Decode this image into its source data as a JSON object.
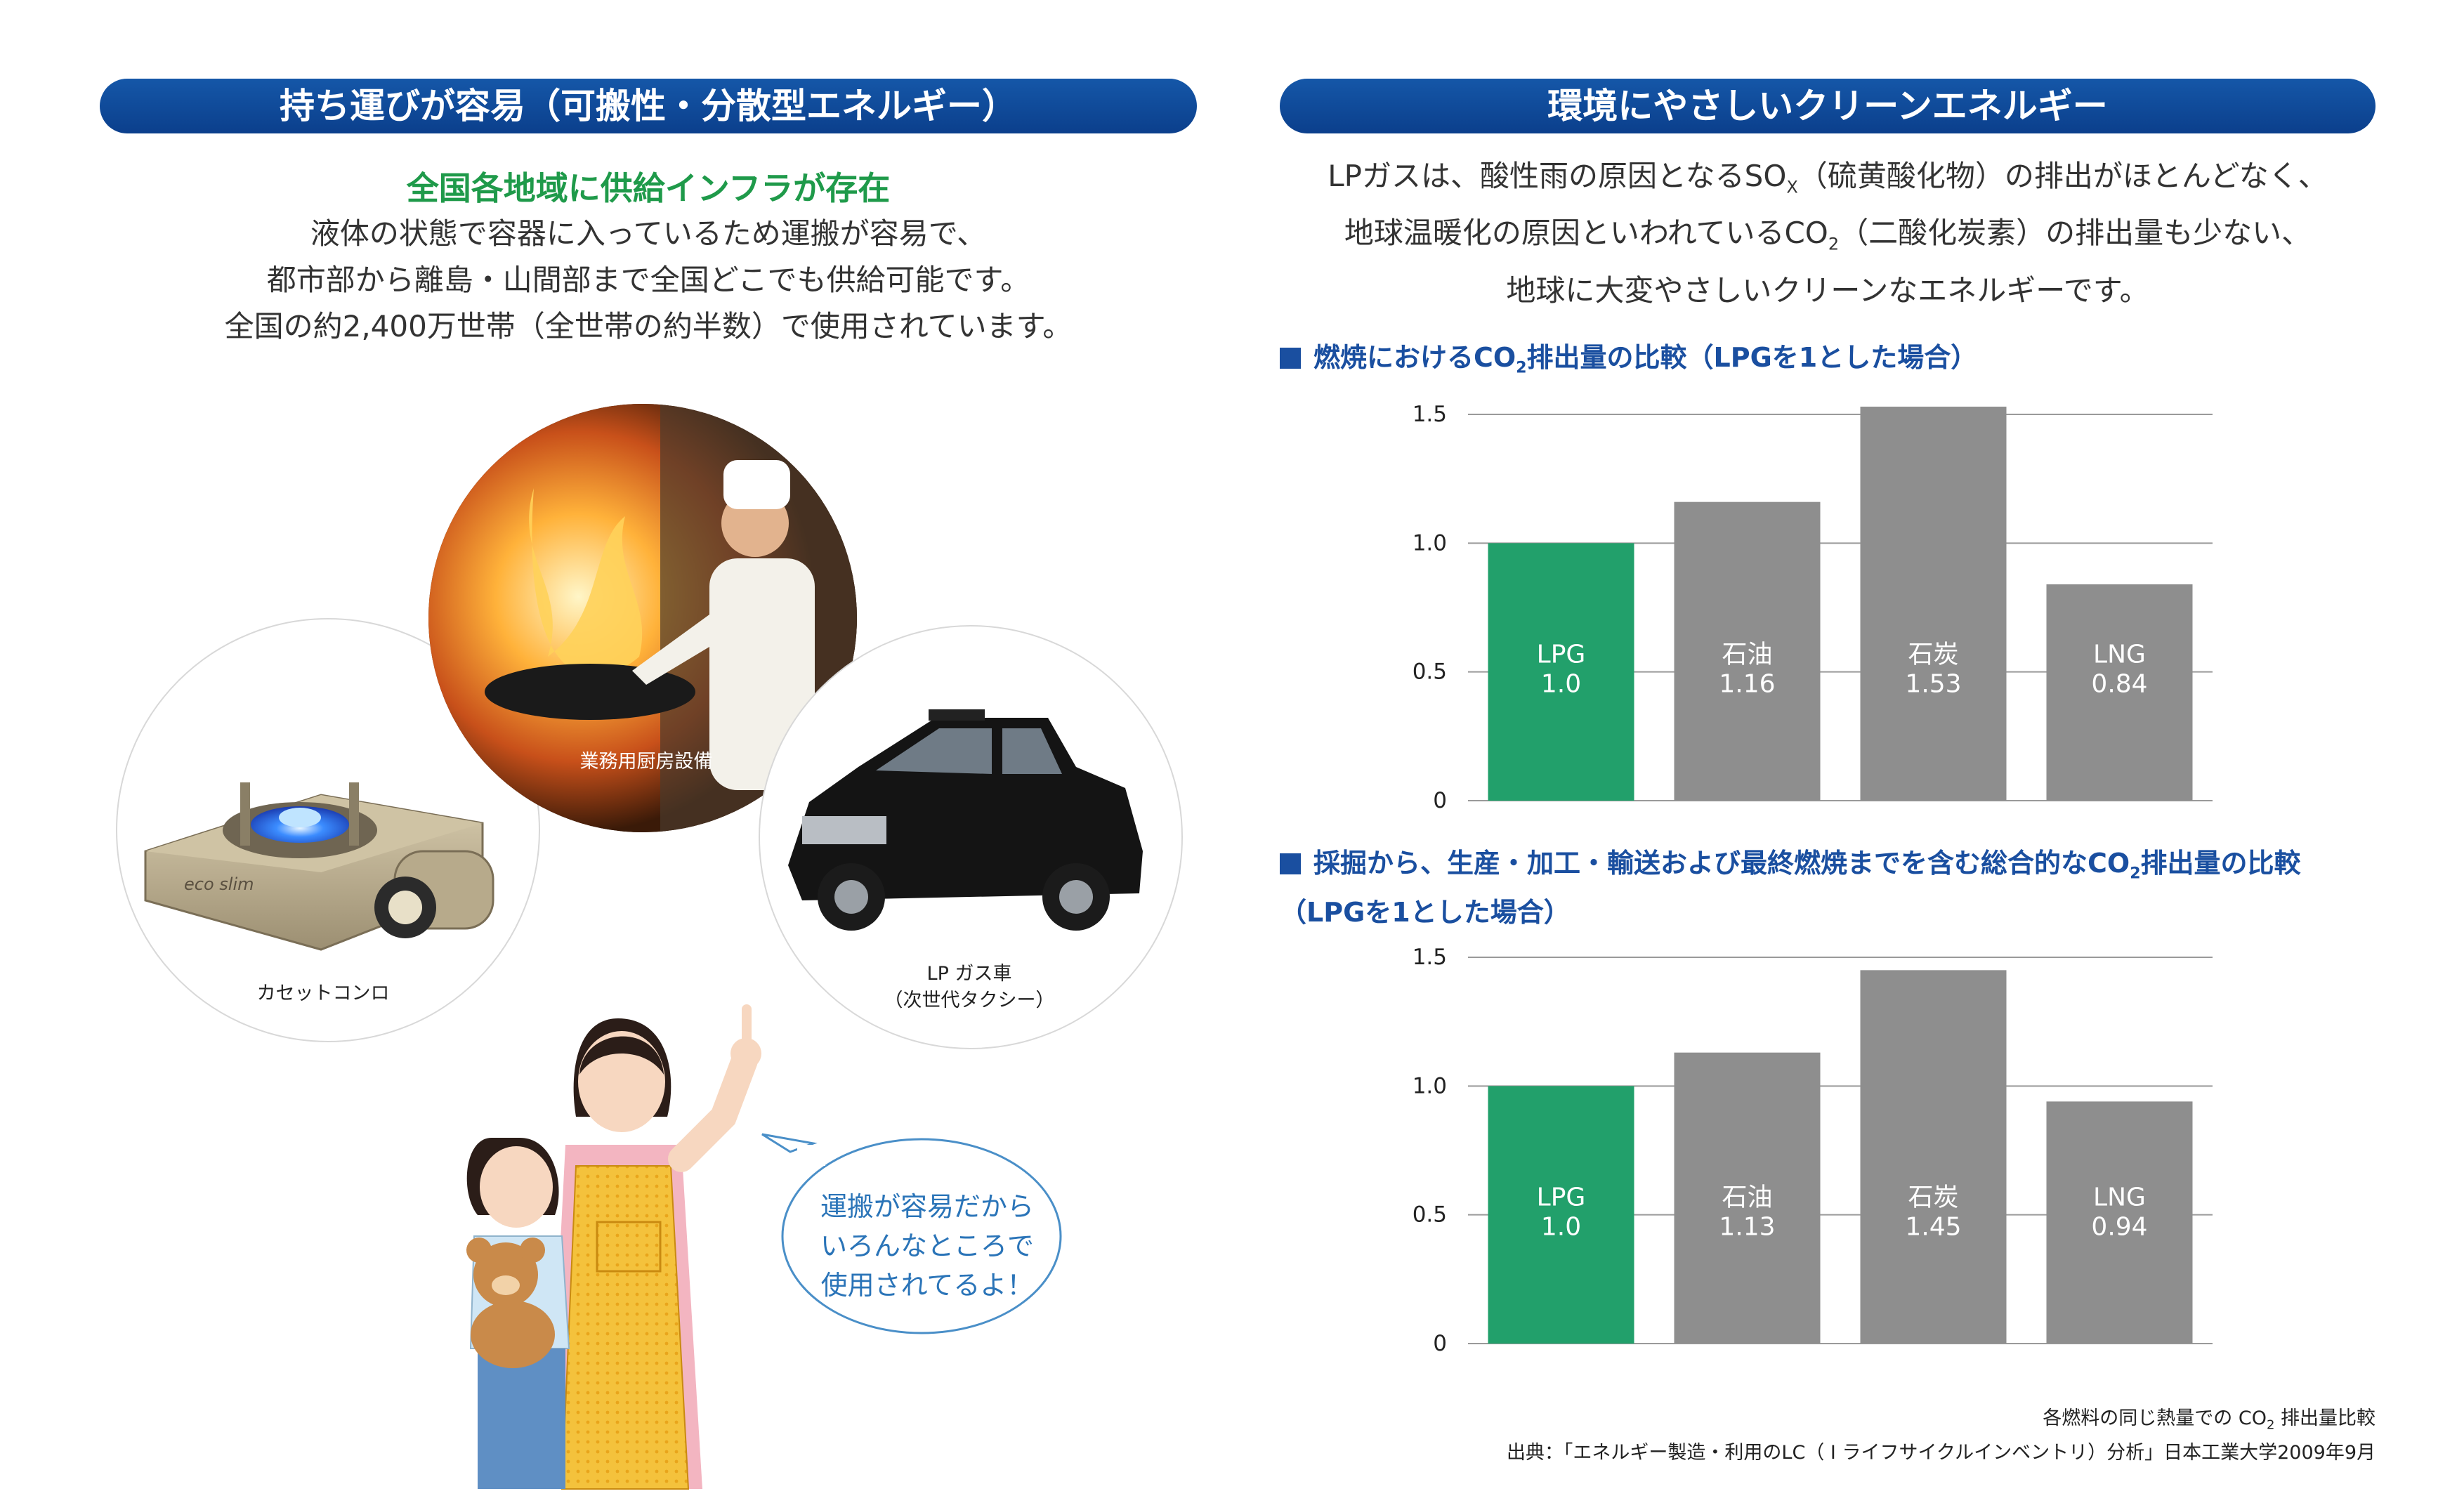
{
  "left": {
    "header": "持ち運びが容易（可搬性・分散型エネルギー）",
    "subhead": "全国各地域に供給インフラが存在",
    "lines": [
      "液体の状態で容器に入っているため運搬が容易で、",
      "都市部から離島・山間部まで全国どこでも供給可能です。",
      "全国の約2,400万世帯（全世帯の約半数）で使用されています。"
    ],
    "captions": {
      "kitchen": "業務用厨房設備",
      "stove": "カセットコンロ",
      "car_line1": "LP ガス車",
      "car_line2": "（次世代タクシー）"
    },
    "stove_brand": "eco slim",
    "bubble": [
      "運搬が容易だから",
      "いろんなところで",
      "使用されてるよ！"
    ]
  },
  "right": {
    "header": "環境にやさしいクリーンエネルギー",
    "intro": {
      "l1_pre": "LPガスは、酸性雨の原因となるSO",
      "l1_sub": "X",
      "l1_post": "（硫黄酸化物）の排出がほとんどなく、",
      "l2_pre": "地球温暖化の原因といわれているCO",
      "l2_sub": "2",
      "l2_post": "（二酸化炭素）の排出量も少ない、",
      "l3": "地球に大変やさしいクリーンなエネルギーです。"
    },
    "chart1_title": {
      "pre": "燃焼におけるCO",
      "sub": "2",
      "post": "排出量の比較（LPGを1とした場合）"
    },
    "chart2_title": {
      "pre": "採掘から、生産・加工・輸送および最終燃焼までを含む総合的なCO",
      "sub": "2",
      "post": "排出量の比較",
      "line2": "（LPGを1とした場合）"
    },
    "note1_pre": "各燃料の同じ熱量での CO",
    "note1_sub": "2",
    "note1_post": " 排出量比較",
    "note2": "出典：「エネルギー製造・利用のLC（ I ライフサイクルインベントリ）分析」日本工業大学2009年9月"
  },
  "colors": {
    "navy": "#0b3f8c",
    "green": "#22a06b",
    "gray": "#8e8e8e",
    "head_green": "#1f9a4a"
  },
  "chart_data": [
    {
      "type": "bar",
      "categories": [
        "LPG",
        "石油",
        "石炭",
        "LNG"
      ],
      "values": [
        1.0,
        1.16,
        1.53,
        0.84
      ],
      "value_labels": [
        "1.0",
        "1.16",
        "1.53",
        "0.84"
      ],
      "ylim": [
        0,
        1.5
      ],
      "yticks": [
        "0",
        "0.5",
        "1.0",
        "1.5"
      ],
      "grid": true,
      "bar_colors": [
        "#22a06b",
        "#8e8e8e",
        "#8e8e8e",
        "#8e8e8e"
      ]
    },
    {
      "type": "bar",
      "categories": [
        "LPG",
        "石油",
        "石炭",
        "LNG"
      ],
      "values": [
        1.0,
        1.13,
        1.45,
        0.94
      ],
      "value_labels": [
        "1.0",
        "1.13",
        "1.45",
        "0.94"
      ],
      "ylim": [
        0,
        1.5
      ],
      "yticks": [
        "0",
        "0.5",
        "1.0",
        "1.5"
      ],
      "grid": true,
      "bar_colors": [
        "#22a06b",
        "#8e8e8e",
        "#8e8e8e",
        "#8e8e8e"
      ]
    }
  ]
}
